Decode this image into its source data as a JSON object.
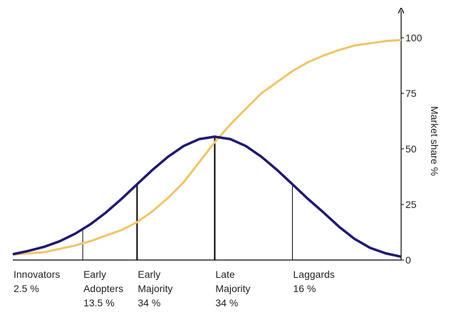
{
  "chart_data": {
    "type": "line",
    "y_label": "Market share %",
    "x": [
      -2.6,
      -2.4,
      -2.2,
      -2.0,
      -1.8,
      -1.6,
      -1.4,
      -1.2,
      -1.0,
      -0.8,
      -0.6,
      -0.4,
      -0.2,
      0,
      0.2,
      0.4,
      0.6,
      0.8,
      1.0,
      1.2,
      1.4,
      1.6,
      1.8,
      2.0,
      2.2,
      2.4
    ],
    "xlim": [
      -2.6,
      2.4
    ],
    "ylim": [
      0,
      100
    ],
    "yticks": [
      0,
      25,
      50,
      75,
      100
    ],
    "series": [
      {
        "color": "#f0c46a",
        "values": [
          2.5,
          3,
          3.5,
          5,
          6.5,
          8.5,
          11,
          13.5,
          17,
          22,
          28,
          35,
          44,
          53,
          61,
          68,
          75,
          80,
          85,
          89,
          92,
          94.5,
          96.5,
          97.5,
          98.5,
          99
        ]
      },
      {
        "color": "#1f1a6e",
        "values": [
          2.6,
          4.1,
          5.9,
          8.4,
          11.8,
          16.1,
          21.4,
          27.5,
          34.1,
          40.6,
          46.5,
          51.3,
          54.4,
          55.5,
          54.4,
          51.3,
          46.5,
          40.6,
          34.1,
          27.5,
          21.4,
          15,
          9.5,
          5.5,
          3,
          1.5
        ]
      }
    ],
    "dividers": [
      -1.7,
      -1,
      0,
      1
    ],
    "segments": [
      {
        "name_lines": [
          "Innovators"
        ],
        "value": 2.5,
        "value_label": "2.5 %"
      },
      {
        "name_lines": [
          "Early",
          "Adopters"
        ],
        "value": 13.5,
        "value_label": "13.5 %"
      },
      {
        "name_lines": [
          "Early",
          "Majority"
        ],
        "value": 34,
        "value_label": "34 %"
      },
      {
        "name_lines": [
          "Late",
          "Majority"
        ],
        "value": 34,
        "value_label": "34 %"
      },
      {
        "name_lines": [
          "Laggards"
        ],
        "value": 16,
        "value_label": "16 %"
      }
    ]
  }
}
